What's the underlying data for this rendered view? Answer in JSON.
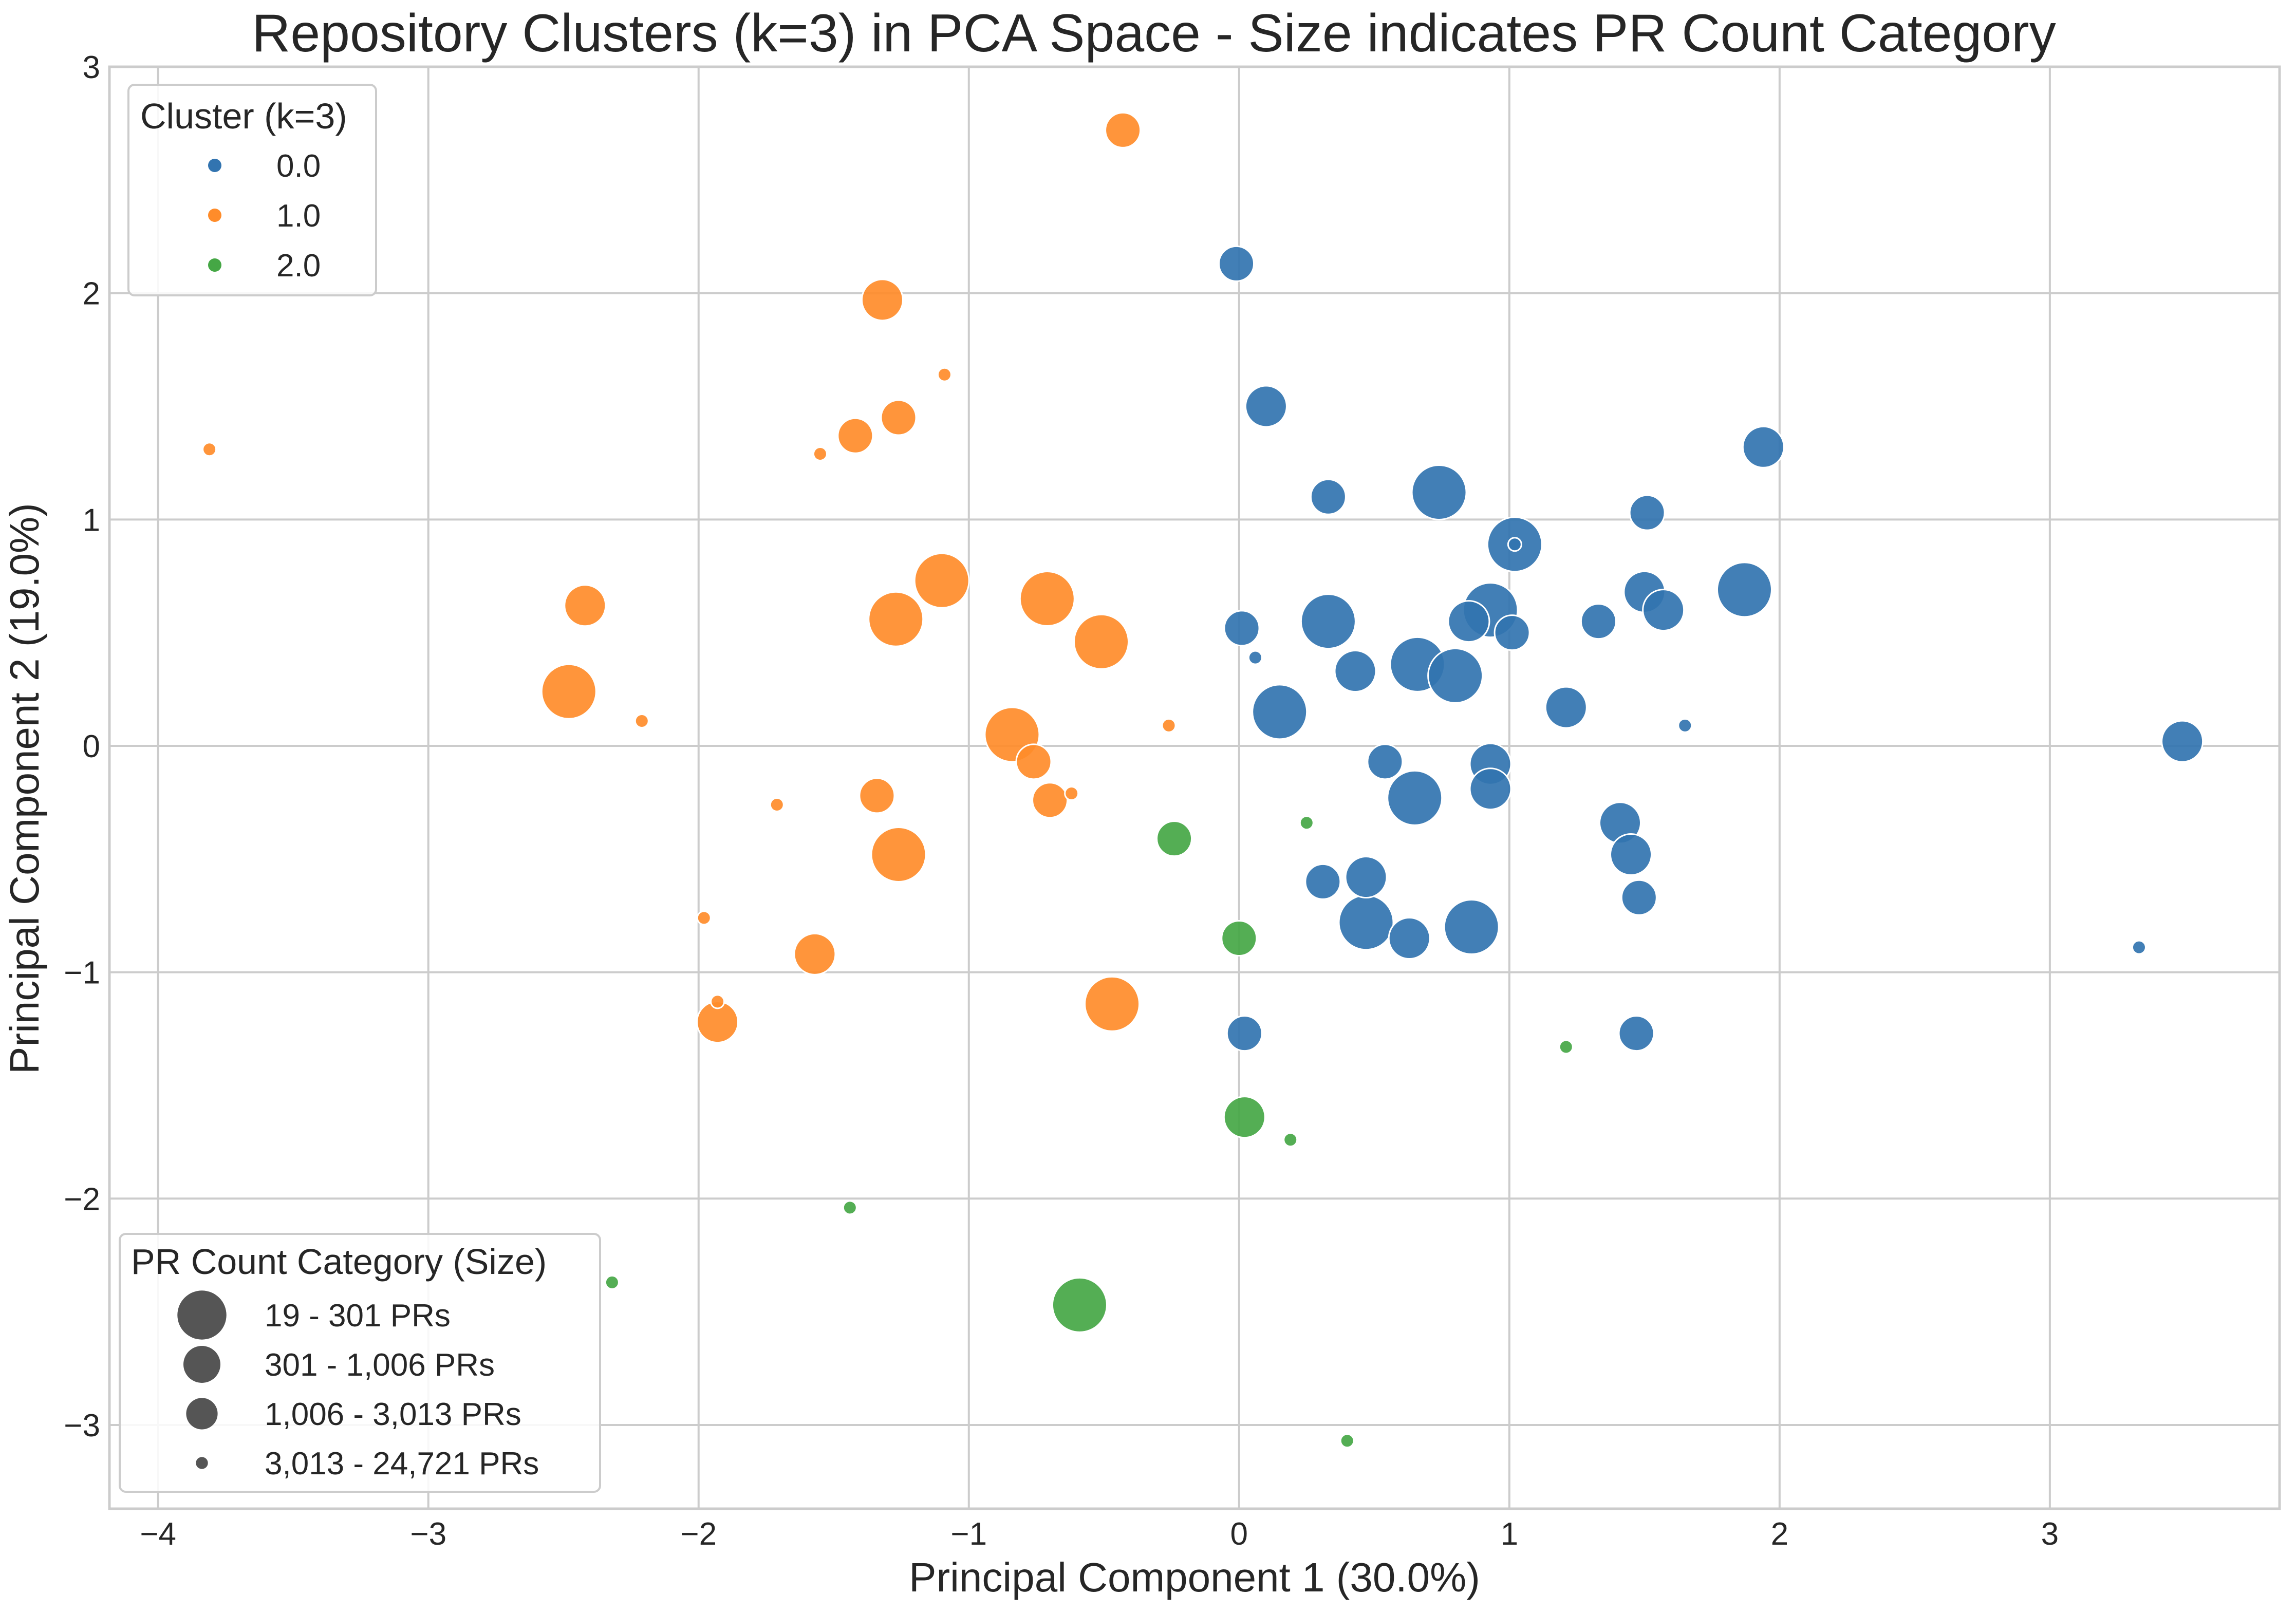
{
  "chart_data": {
    "type": "scatter",
    "title": "Repository Clusters (k=3) in PCA Space - Size indicates PR Count Category",
    "xlabel": "Principal Component 1 (30.0%)",
    "ylabel": "Principal Component 2 (19.0%)",
    "xlim": [
      -4.18,
      3.85
    ],
    "ylim": [
      -3.37,
      3.0
    ],
    "x_ticks": [
      -4,
      -3,
      -2,
      -1,
      0,
      1,
      2,
      3
    ],
    "y_ticks": [
      -3,
      -2,
      -1,
      0,
      1,
      2,
      3
    ],
    "x_tick_labels": [
      "−4",
      "−3",
      "−2",
      "−1",
      "0",
      "1",
      "2",
      "3"
    ],
    "y_tick_labels": [
      "−3",
      "−2",
      "−1",
      "0",
      "1",
      "2",
      "3"
    ],
    "grid": true,
    "colors": {
      "0.0": "#3274b0",
      "1.0": "#ff8c2a",
      "2.0": "#45a745",
      "size_marker": "#555555"
    },
    "color_legend": {
      "title": "Cluster (k=3)",
      "placement": "top-left",
      "entries": [
        {
          "label": "0.0",
          "color": "#3274b0"
        },
        {
          "label": "1.0",
          "color": "#ff8c2a"
        },
        {
          "label": "2.0",
          "color": "#45a745"
        }
      ]
    },
    "size_legend": {
      "title": "PR Count Category (Size)",
      "placement": "bottom-left",
      "entries": [
        {
          "label": "19 - 301 PRs",
          "size": 4
        },
        {
          "label": "301 - 1,006 PRs",
          "size": 3
        },
        {
          "label": "1,006 - 3,013 PRs",
          "size": 2
        },
        {
          "label": "3,013 - 24,721 PRs",
          "size": 1
        }
      ]
    },
    "series": [
      {
        "name": "0.0",
        "points": [
          {
            "x": -0.01,
            "y": 2.13,
            "size": 2
          },
          {
            "x": 0.1,
            "y": 1.5,
            "size": 3
          },
          {
            "x": 0.33,
            "y": 1.1,
            "size": 2
          },
          {
            "x": 0.74,
            "y": 1.12,
            "size": 4
          },
          {
            "x": 1.02,
            "y": 0.89,
            "size": 4
          },
          {
            "x": 1.02,
            "y": 0.89,
            "size": 1
          },
          {
            "x": 1.51,
            "y": 1.03,
            "size": 2
          },
          {
            "x": 1.94,
            "y": 1.32,
            "size": 3
          },
          {
            "x": 0.01,
            "y": 0.52,
            "size": 2
          },
          {
            "x": 0.06,
            "y": 0.39,
            "size": 1
          },
          {
            "x": 0.33,
            "y": 0.55,
            "size": 4
          },
          {
            "x": 0.43,
            "y": 0.33,
            "size": 3
          },
          {
            "x": 0.66,
            "y": 0.36,
            "size": 4
          },
          {
            "x": 0.8,
            "y": 0.31,
            "size": 4
          },
          {
            "x": 0.85,
            "y": 0.55,
            "size": 3
          },
          {
            "x": 0.93,
            "y": 0.6,
            "size": 4
          },
          {
            "x": 1.01,
            "y": 0.5,
            "size": 2
          },
          {
            "x": 1.33,
            "y": 0.55,
            "size": 2
          },
          {
            "x": 1.5,
            "y": 0.68,
            "size": 3
          },
          {
            "x": 1.57,
            "y": 0.6,
            "size": 3
          },
          {
            "x": 1.87,
            "y": 0.69,
            "size": 4
          },
          {
            "x": 1.21,
            "y": 0.17,
            "size": 3
          },
          {
            "x": 1.65,
            "y": 0.09,
            "size": 1
          },
          {
            "x": 0.15,
            "y": 0.15,
            "size": 4
          },
          {
            "x": 0.54,
            "y": -0.07,
            "size": 2
          },
          {
            "x": 0.93,
            "y": -0.08,
            "size": 3
          },
          {
            "x": 0.93,
            "y": -0.19,
            "size": 3
          },
          {
            "x": 0.65,
            "y": -0.23,
            "size": 4
          },
          {
            "x": 1.41,
            "y": -0.34,
            "size": 3
          },
          {
            "x": 1.45,
            "y": -0.48,
            "size": 3
          },
          {
            "x": 0.31,
            "y": -0.6,
            "size": 2
          },
          {
            "x": 0.47,
            "y": -0.58,
            "size": 3
          },
          {
            "x": 0.47,
            "y": -0.78,
            "size": 4
          },
          {
            "x": 0.63,
            "y": -0.85,
            "size": 3
          },
          {
            "x": 0.86,
            "y": -0.8,
            "size": 4
          },
          {
            "x": 1.48,
            "y": -0.67,
            "size": 2
          },
          {
            "x": 0.02,
            "y": -1.27,
            "size": 2
          },
          {
            "x": 1.47,
            "y": -1.27,
            "size": 2
          },
          {
            "x": 3.33,
            "y": -0.89,
            "size": 1
          },
          {
            "x": 3.49,
            "y": 0.02,
            "size": 3
          }
        ]
      },
      {
        "name": "1.0",
        "points": [
          {
            "x": -0.43,
            "y": 2.72,
            "size": 2
          },
          {
            "x": -1.32,
            "y": 1.97,
            "size": 3
          },
          {
            "x": -1.09,
            "y": 1.64,
            "size": 1
          },
          {
            "x": -1.26,
            "y": 1.45,
            "size": 2
          },
          {
            "x": -1.42,
            "y": 1.37,
            "size": 2
          },
          {
            "x": -1.55,
            "y": 1.29,
            "size": 1
          },
          {
            "x": -3.81,
            "y": 1.31,
            "size": 1
          },
          {
            "x": -2.42,
            "y": 0.62,
            "size": 3
          },
          {
            "x": -1.1,
            "y": 0.73,
            "size": 4
          },
          {
            "x": -1.27,
            "y": 0.56,
            "size": 4
          },
          {
            "x": -0.71,
            "y": 0.65,
            "size": 4
          },
          {
            "x": -0.51,
            "y": 0.46,
            "size": 4
          },
          {
            "x": -2.48,
            "y": 0.24,
            "size": 4
          },
          {
            "x": -2.21,
            "y": 0.11,
            "size": 1
          },
          {
            "x": -0.84,
            "y": 0.05,
            "size": 4
          },
          {
            "x": -0.76,
            "y": -0.07,
            "size": 2
          },
          {
            "x": -0.26,
            "y": 0.09,
            "size": 1
          },
          {
            "x": -1.34,
            "y": -0.22,
            "size": 2
          },
          {
            "x": -0.7,
            "y": -0.24,
            "size": 2
          },
          {
            "x": -0.62,
            "y": -0.21,
            "size": 1
          },
          {
            "x": -1.71,
            "y": -0.26,
            "size": 1
          },
          {
            "x": -1.26,
            "y": -0.48,
            "size": 4
          },
          {
            "x": -1.98,
            "y": -0.76,
            "size": 1
          },
          {
            "x": -1.57,
            "y": -0.92,
            "size": 3
          },
          {
            "x": -1.93,
            "y": -1.13,
            "size": 1
          },
          {
            "x": -1.93,
            "y": -1.22,
            "size": 3
          },
          {
            "x": -0.47,
            "y": -1.14,
            "size": 4
          }
        ]
      },
      {
        "name": "2.0",
        "points": [
          {
            "x": -0.24,
            "y": -0.41,
            "size": 2
          },
          {
            "x": 0.25,
            "y": -0.34,
            "size": 1
          },
          {
            "x": 0.0,
            "y": -0.85,
            "size": 2
          },
          {
            "x": 1.21,
            "y": -1.33,
            "size": 1
          },
          {
            "x": 0.02,
            "y": -1.64,
            "size": 3
          },
          {
            "x": 0.19,
            "y": -1.74,
            "size": 1
          },
          {
            "x": -1.44,
            "y": -2.04,
            "size": 1
          },
          {
            "x": -2.32,
            "y": -2.37,
            "size": 1
          },
          {
            "x": -0.59,
            "y": -2.47,
            "size": 4
          },
          {
            "x": 0.4,
            "y": -3.07,
            "size": 1
          }
        ]
      }
    ]
  }
}
